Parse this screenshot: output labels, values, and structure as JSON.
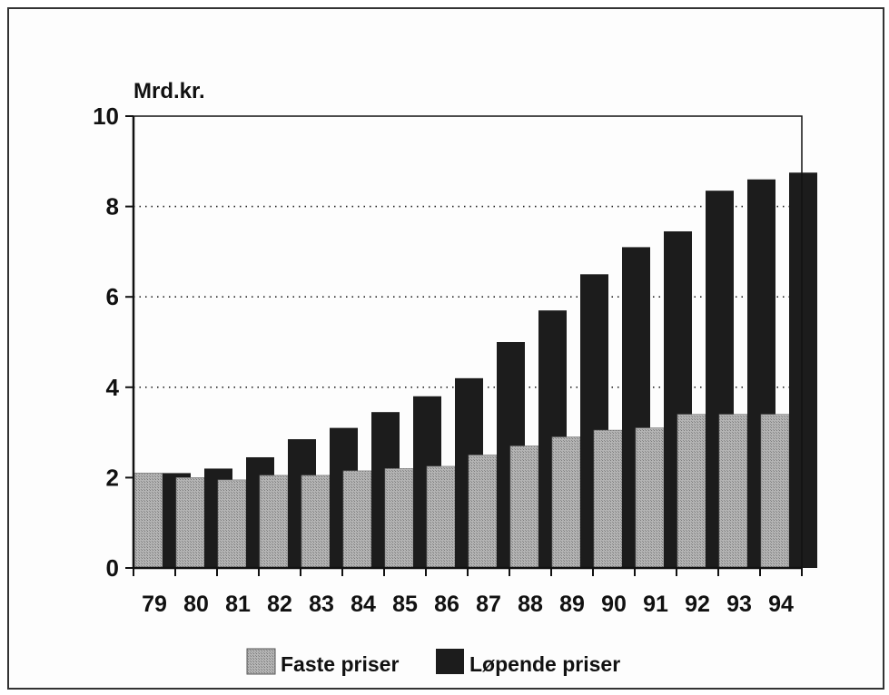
{
  "chart_data": {
    "type": "bar",
    "ylabel": "Mrd.kr.",
    "xlabel": "",
    "title": "",
    "ylim": [
      0,
      10
    ],
    "yticks": [
      "0",
      "2",
      "4",
      "6",
      "8",
      "10"
    ],
    "grid": "dotted horizontal at 4, 6, 8",
    "legend_position": "bottom",
    "categories": [
      "79",
      "80",
      "81",
      "82",
      "83",
      "84",
      "85",
      "86",
      "87",
      "88",
      "89",
      "90",
      "91",
      "92",
      "93",
      "94"
    ],
    "series": [
      {
        "name": "Faste priser",
        "color": "#a6a6a6",
        "values": [
          2.1,
          2.0,
          1.95,
          2.05,
          2.05,
          2.15,
          2.2,
          2.25,
          2.5,
          2.7,
          2.9,
          3.05,
          3.1,
          3.4,
          3.4,
          3.4
        ]
      },
      {
        "name": "Løpende priser",
        "color": "#1c1c1c",
        "values": [
          2.1,
          2.2,
          2.45,
          2.85,
          3.1,
          3.45,
          3.8,
          4.2,
          5.0,
          5.7,
          6.5,
          7.1,
          7.45,
          8.35,
          8.6,
          8.75
        ]
      }
    ]
  }
}
